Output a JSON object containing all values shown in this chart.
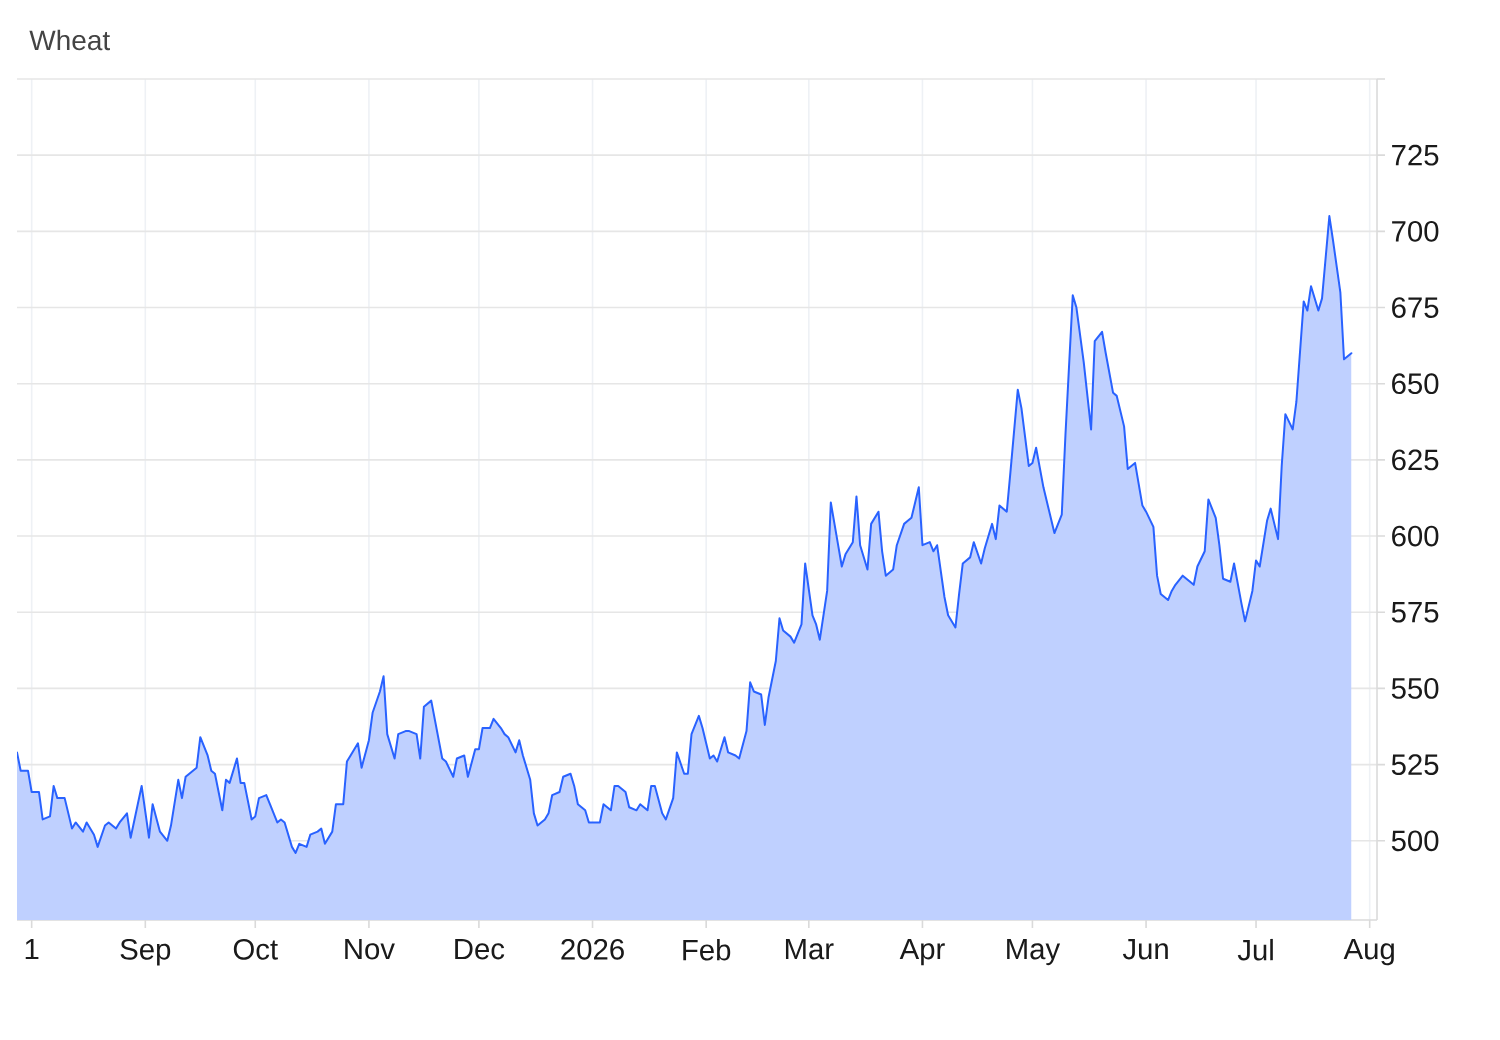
{
  "chart_data": {
    "type": "area",
    "title": "Wheat",
    "color": "#2962ff",
    "x": [
      "2025-07-28",
      "2025-07-29",
      "2025-07-31",
      "2025-08-01",
      "2025-08-03",
      "2025-08-04",
      "2025-08-06",
      "2025-08-07",
      "2025-08-08",
      "2025-08-10",
      "2025-08-12",
      "2025-08-13",
      "2025-08-15",
      "2025-08-16",
      "2025-08-18",
      "2025-08-19",
      "2025-08-21",
      "2025-08-22",
      "2025-08-24",
      "2025-08-25",
      "2025-08-27",
      "2025-08-28",
      "2025-08-31",
      "2025-09-02",
      "2025-09-03",
      "2025-09-05",
      "2025-09-07",
      "2025-09-08",
      "2025-09-10",
      "2025-09-11",
      "2025-09-12",
      "2025-09-13",
      "2025-09-15",
      "2025-09-16",
      "2025-09-18",
      "2025-09-19",
      "2025-09-20",
      "2025-09-22",
      "2025-09-23",
      "2025-09-24",
      "2025-09-26",
      "2025-09-27",
      "2025-09-28",
      "2025-09-30",
      "2025-10-01",
      "2025-10-02",
      "2025-10-04",
      "2025-10-05",
      "2025-10-07",
      "2025-10-08",
      "2025-10-09",
      "2025-10-11",
      "2025-10-12",
      "2025-10-13",
      "2025-10-15",
      "2025-10-16",
      "2025-10-18",
      "2025-10-19",
      "2025-10-20",
      "2025-10-22",
      "2025-10-23",
      "2025-10-25",
      "2025-10-26",
      "2025-10-27",
      "2025-10-29",
      "2025-10-30",
      "2025-11-01",
      "2025-11-02",
      "2025-11-04",
      "2025-11-05",
      "2025-11-06",
      "2025-11-08",
      "2025-11-09",
      "2025-11-11",
      "2025-11-12",
      "2025-11-14",
      "2025-11-15",
      "2025-11-16",
      "2025-11-18",
      "2025-11-21",
      "2025-11-22",
      "2025-11-24",
      "2025-11-25",
      "2025-11-27",
      "2025-11-28",
      "2025-11-30",
      "2025-12-01",
      "2025-12-02",
      "2025-12-04",
      "2025-12-05",
      "2025-12-07",
      "2025-12-08",
      "2025-12-09",
      "2025-12-11",
      "2025-12-12",
      "2025-12-13",
      "2025-12-15",
      "2025-12-16",
      "2025-12-17",
      "2025-12-19",
      "2025-12-20",
      "2025-12-21",
      "2025-12-23",
      "2025-12-24",
      "2025-12-26",
      "2025-12-27",
      "2025-12-28",
      "2025-12-30",
      "2025-12-31",
      "2026-01-01",
      "2026-01-03",
      "2026-01-04",
      "2026-01-06",
      "2026-01-07",
      "2026-01-08",
      "2026-01-10",
      "2026-01-11",
      "2026-01-13",
      "2026-01-14",
      "2026-01-16",
      "2026-01-17",
      "2026-01-18",
      "2026-01-20",
      "2026-01-21",
      "2026-01-23",
      "2026-01-24",
      "2026-01-26",
      "2026-01-27",
      "2026-01-28",
      "2026-01-30",
      "2026-01-31",
      "2026-02-02",
      "2026-02-03",
      "2026-02-04",
      "2026-02-06",
      "2026-02-07",
      "2026-02-09",
      "2026-02-10",
      "2026-02-12",
      "2026-02-13",
      "2026-02-14",
      "2026-02-16",
      "2026-02-17",
      "2026-02-18",
      "2026-02-20",
      "2026-02-21",
      "2026-02-22",
      "2026-02-24",
      "2026-02-25",
      "2026-02-27",
      "2026-02-28",
      "2026-03-02",
      "2026-03-03",
      "2026-03-04",
      "2026-03-06",
      "2026-03-07",
      "2026-03-09",
      "2026-03-10",
      "2026-03-11",
      "2026-03-13",
      "2026-03-14",
      "2026-03-15",
      "2026-03-17",
      "2026-03-18",
      "2026-03-20",
      "2026-03-21",
      "2026-03-22",
      "2026-03-24",
      "2026-03-25",
      "2026-03-27",
      "2026-03-28",
      "2026-03-29",
      "2026-03-31",
      "2026-04-01",
      "2026-04-03",
      "2026-04-04",
      "2026-04-05",
      "2026-04-07",
      "2026-04-08",
      "2026-04-10",
      "2026-04-11",
      "2026-04-12",
      "2026-04-14",
      "2026-04-15",
      "2026-04-17",
      "2026-04-18",
      "2026-04-20",
      "2026-04-21",
      "2026-04-22",
      "2026-04-24",
      "2026-04-25",
      "2026-04-27",
      "2026-04-28",
      "2026-04-30",
      "2026-05-01",
      "2026-05-02",
      "2026-05-04",
      "2026-05-06",
      "2026-05-07",
      "2026-05-09",
      "2026-05-10",
      "2026-05-12",
      "2026-05-13",
      "2026-05-15",
      "2026-05-17",
      "2026-05-18",
      "2026-05-20",
      "2026-05-21",
      "2026-05-23",
      "2026-05-24",
      "2026-05-26",
      "2026-05-27",
      "2026-05-29",
      "2026-05-31",
      "2026-06-01",
      "2026-06-03",
      "2026-06-04",
      "2026-06-05",
      "2026-06-07",
      "2026-06-08",
      "2026-06-09",
      "2026-06-11",
      "2026-06-12",
      "2026-06-14",
      "2026-06-15",
      "2026-06-17",
      "2026-06-18",
      "2026-06-20",
      "2026-06-21",
      "2026-06-22",
      "2026-06-24",
      "2026-06-25",
      "2026-06-27",
      "2026-06-28",
      "2026-06-30",
      "2026-07-01",
      "2026-07-02",
      "2026-07-04",
      "2026-07-05",
      "2026-07-07",
      "2026-07-08",
      "2026-07-09",
      "2026-07-11",
      "2026-07-12",
      "2026-07-14",
      "2026-07-15",
      "2026-07-16",
      "2026-07-18",
      "2026-07-19",
      "2026-07-21",
      "2026-07-22",
      "2026-07-24",
      "2026-07-25",
      "2026-07-27"
    ],
    "values": [
      529,
      523,
      523,
      516,
      516,
      507,
      508,
      518,
      514,
      514,
      504,
      506,
      503,
      506,
      502,
      498,
      505,
      506,
      504,
      506,
      509,
      501,
      518,
      501,
      512,
      503,
      500,
      505,
      520,
      514,
      521,
      522,
      524,
      534,
      528,
      523,
      522,
      510,
      520,
      519,
      527,
      519,
      519,
      507,
      508,
      514,
      515,
      512,
      506,
      507,
      506,
      498,
      496,
      499,
      498,
      502,
      503,
      504,
      499,
      503,
      512,
      512,
      526,
      528,
      532,
      524,
      533,
      542,
      549,
      554,
      535,
      527,
      535,
      536,
      536,
      535,
      527,
      544,
      546,
      527,
      526,
      521,
      527,
      528,
      521,
      530,
      530,
      537,
      537,
      540,
      537,
      535,
      534,
      529,
      533,
      528,
      520,
      509,
      505,
      507,
      509,
      515,
      516,
      521,
      522,
      518,
      512,
      510,
      506,
      506,
      506,
      512,
      510,
      518,
      518,
      516,
      511,
      510,
      512,
      510,
      518,
      518,
      509,
      507,
      514,
      529,
      522,
      522,
      535,
      541,
      537,
      527,
      528,
      526,
      534,
      529,
      528,
      527,
      536,
      552,
      549,
      548,
      538,
      547,
      559,
      573,
      569,
      567,
      565,
      571,
      591,
      574,
      571,
      566,
      582,
      611,
      597,
      590,
      594,
      598,
      613,
      597,
      589,
      604,
      608,
      595,
      587,
      589,
      597,
      604,
      605,
      606,
      616,
      597,
      598,
      595,
      597,
      580,
      574,
      570,
      581,
      591,
      593,
      598,
      591,
      596,
      604,
      599,
      610,
      608,
      621,
      648,
      642,
      623,
      624,
      629,
      616,
      606,
      601,
      607,
      633,
      679,
      675,
      657,
      635,
      664,
      667,
      660,
      647,
      646,
      636,
      622,
      624,
      610,
      608,
      603,
      587,
      581,
      579,
      582,
      584,
      587,
      586,
      584,
      590,
      595,
      612,
      606,
      597,
      586,
      585,
      591,
      578,
      572,
      582,
      592,
      590,
      605,
      609,
      599,
      623,
      640,
      635,
      644,
      677,
      674,
      682,
      674,
      678,
      705,
      697,
      680,
      658,
      660
    ],
    "xlim": [
      "2025-07-28",
      "2026-08-03"
    ],
    "ylim": [
      474,
      750
    ],
    "xticks": [
      {
        "value": "2025-08-01",
        "label": "1"
      },
      {
        "value": "2025-09-01",
        "label": "Sep"
      },
      {
        "value": "2025-10-01",
        "label": "Oct"
      },
      {
        "value": "2025-11-01",
        "label": "Nov"
      },
      {
        "value": "2025-12-01",
        "label": "Dec"
      },
      {
        "value": "2026-01-01",
        "label": "2026"
      },
      {
        "value": "2026-02-01",
        "label": "Feb"
      },
      {
        "value": "2026-03-01",
        "label": "Mar"
      },
      {
        "value": "2026-04-01",
        "label": "Apr"
      },
      {
        "value": "2026-05-01",
        "label": "May"
      },
      {
        "value": "2026-06-01",
        "label": "Jun"
      },
      {
        "value": "2026-07-01",
        "label": "Jul"
      },
      {
        "value": "2026-08-01",
        "label": "Aug"
      }
    ],
    "yticks": [
      500,
      525,
      550,
      575,
      600,
      625,
      650,
      675,
      700,
      725,
      {
        "value": 750,
        "label": null
      }
    ],
    "grid": true
  }
}
